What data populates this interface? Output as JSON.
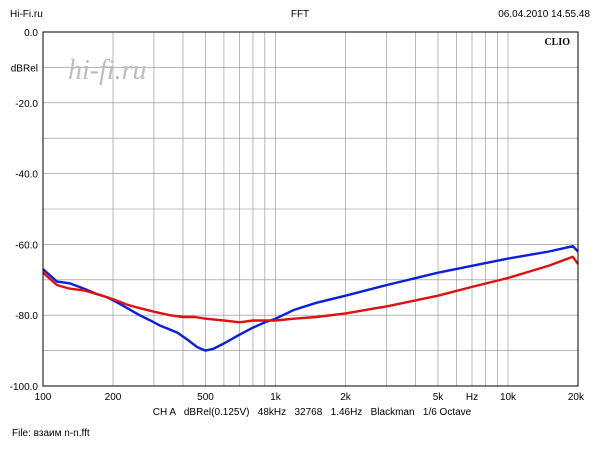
{
  "header": {
    "left": "Hi-Fi.ru",
    "center": "FFT",
    "right": "06.04.2010 14.55.48"
  },
  "watermark": "hi-fi.ru",
  "brand": "CLIO",
  "footer": {
    "params": "CH A   dBRel(0.125V)   48kHz   32768   1.46Hz   Blackman   1/6 Octave",
    "file": "File: взаим n-n.fft"
  },
  "colors": {
    "blue_series": "#0a1ee0",
    "red_series": "#e01010",
    "grid": "#8c8c8c",
    "frame": "#000000"
  },
  "chart_data": {
    "type": "line",
    "title": "",
    "xlabel": "",
    "ylabel": "dBRel",
    "x_scale": "log",
    "xlim": [
      100,
      20000
    ],
    "ylim": [
      -100,
      0
    ],
    "grid": true,
    "x_ticks": [
      {
        "v": 100,
        "l": "100"
      },
      {
        "v": 200,
        "l": "200"
      },
      {
        "v": 500,
        "l": "500"
      },
      {
        "v": 1000,
        "l": "1k"
      },
      {
        "v": 2000,
        "l": "2k"
      },
      {
        "v": 5000,
        "l": "5k"
      },
      {
        "v": 10000,
        "l": "10k"
      },
      {
        "v": 20000,
        "l": "20k"
      }
    ],
    "x_unit_label": {
      "v": 7000,
      "l": "Hz"
    },
    "y_ticks": [
      {
        "v": 0,
        "l": "0.0"
      },
      {
        "v": -20,
        "l": "-20.0"
      },
      {
        "v": -40,
        "l": "-40.0"
      },
      {
        "v": -60,
        "l": "-60.0"
      },
      {
        "v": -80,
        "l": "-80.0"
      },
      {
        "v": -100,
        "l": "-100.0"
      }
    ],
    "y_unit_label": {
      "v": -10,
      "l": "dBRel"
    },
    "series": [
      {
        "color": "blue",
        "x": [
          100,
          115,
          130,
          150,
          170,
          190,
          210,
          230,
          260,
          290,
          320,
          350,
          380,
          420,
          460,
          500,
          540,
          600,
          700,
          800,
          900,
          1000,
          1200,
          1500,
          2000,
          3000,
          5000,
          10000,
          15000,
          19000,
          20000
        ],
        "y": [
          -67,
          -70.5,
          -71,
          -72.5,
          -74,
          -75,
          -76.5,
          -78,
          -80,
          -81.5,
          -83,
          -84,
          -85,
          -87,
          -89,
          -90,
          -89.5,
          -88,
          -85.5,
          -83.5,
          -82,
          -81,
          -78.5,
          -76.5,
          -74.5,
          -71.5,
          -68,
          -64,
          -62,
          -60.5,
          -62
        ]
      },
      {
        "color": "red",
        "x": [
          100,
          115,
          130,
          150,
          180,
          200,
          230,
          260,
          300,
          350,
          400,
          450,
          500,
          600,
          700,
          800,
          1000,
          1200,
          1500,
          2000,
          3000,
          5000,
          7000,
          10000,
          15000,
          19000,
          20000
        ],
        "y": [
          -68,
          -71.5,
          -72.5,
          -73,
          -74.5,
          -75.5,
          -77,
          -78,
          -79,
          -80,
          -80.5,
          -80.5,
          -81,
          -81.5,
          -82,
          -81.5,
          -81.5,
          -81,
          -80.5,
          -79.5,
          -77.5,
          -74.5,
          -72,
          -69.5,
          -66,
          -63.5,
          -65.5
        ]
      }
    ]
  }
}
